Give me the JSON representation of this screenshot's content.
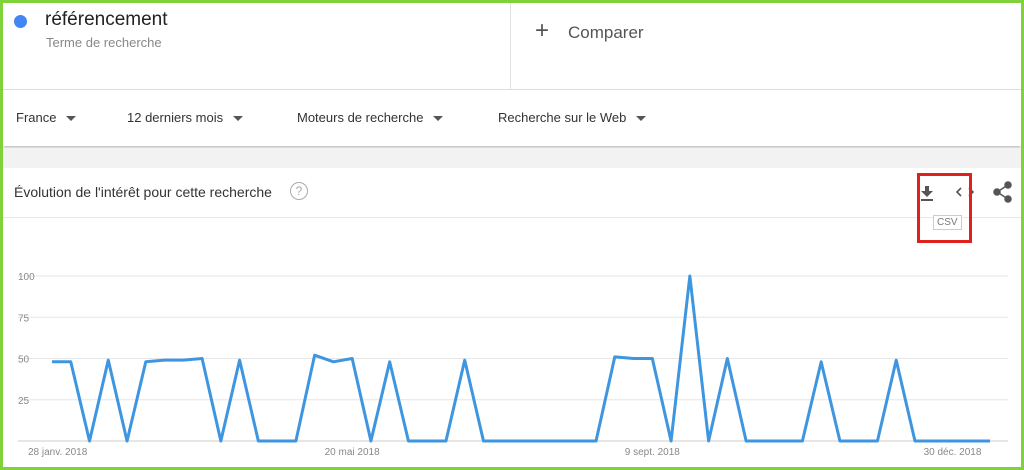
{
  "header": {
    "term": "référencement",
    "term_subtitle": "Terme de recherche",
    "compare": "Comparer"
  },
  "filters": [
    "France",
    "12 derniers mois",
    "Moteurs de recherche",
    "Recherche sur le Web"
  ],
  "tooltip": "CSV",
  "chart_data": {
    "type": "line",
    "title": "Évolution de l'intérêt pour cette recherche",
    "categories": [
      "28 janv. 2018",
      null,
      null,
      null,
      null,
      null,
      null,
      null,
      null,
      null,
      null,
      null,
      null,
      null,
      null,
      null,
      "20 mai 2018",
      null,
      null,
      null,
      null,
      null,
      null,
      null,
      null,
      null,
      null,
      null,
      null,
      null,
      null,
      null,
      "9 sept. 2018",
      null,
      null,
      null,
      null,
      null,
      null,
      null,
      null,
      null,
      null,
      null,
      null,
      null,
      null,
      null,
      "30 déc. 2018",
      null,
      null
    ],
    "series": [
      {
        "name": "référencement",
        "color": "#3f96e0",
        "values": [
          48,
          48,
          0,
          49,
          0,
          48,
          49,
          49,
          50,
          0,
          49,
          0,
          0,
          0,
          52,
          48,
          50,
          0,
          48,
          0,
          0,
          0,
          49,
          0,
          0,
          0,
          0,
          0,
          0,
          0,
          51,
          50,
          50,
          0,
          100,
          0,
          50,
          0,
          0,
          0,
          0,
          48,
          0,
          0,
          0,
          49,
          0,
          0,
          0,
          0,
          0
        ]
      }
    ],
    "ylim": [
      0,
      100
    ],
    "yticks": [
      25,
      50,
      75,
      100
    ],
    "grid": true
  }
}
